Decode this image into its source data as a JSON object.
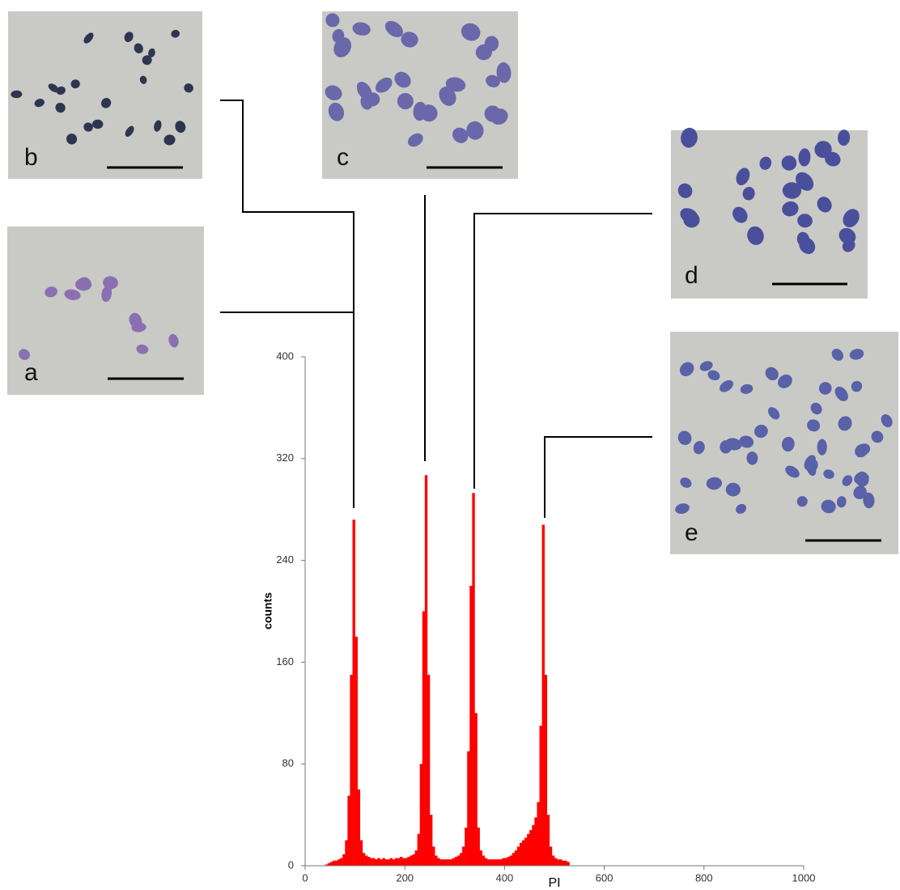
{
  "chart_data": {
    "type": "histogram",
    "xlabel": "PI",
    "ylabel": "counts",
    "color": "#ff0000",
    "bins": [
      40,
      45,
      50,
      55,
      60,
      65,
      70,
      75,
      80,
      85,
      90,
      95,
      100,
      105,
      110,
      115,
      120,
      125,
      130,
      135,
      140,
      145,
      150,
      155,
      160,
      165,
      170,
      175,
      180,
      185,
      190,
      195,
      200,
      205,
      210,
      215,
      220,
      225,
      230,
      235,
      240,
      245,
      250,
      255,
      260,
      265,
      270,
      275,
      280,
      285,
      290,
      295,
      300,
      305,
      310,
      315,
      320,
      325,
      330,
      335,
      340,
      345,
      350,
      355,
      360,
      365,
      370,
      375,
      380,
      385,
      390,
      395,
      400,
      405,
      410,
      415,
      420,
      425,
      430,
      435,
      440,
      445,
      450,
      455,
      460,
      465,
      470,
      475,
      480,
      485,
      490,
      495,
      500,
      505,
      510,
      515,
      520,
      525,
      530
    ],
    "counts": [
      1,
      2,
      3,
      4,
      4,
      5,
      6,
      9,
      20,
      55,
      150,
      272,
      180,
      60,
      20,
      10,
      8,
      7,
      6,
      6,
      5,
      6,
      5,
      6,
      5,
      5,
      6,
      5,
      6,
      6,
      7,
      6,
      6,
      7,
      8,
      9,
      12,
      25,
      80,
      200,
      307,
      150,
      40,
      15,
      8,
      6,
      5,
      5,
      5,
      5,
      5,
      6,
      7,
      8,
      10,
      15,
      30,
      90,
      220,
      293,
      120,
      30,
      12,
      8,
      6,
      5,
      5,
      5,
      5,
      5,
      5,
      6,
      6,
      7,
      8,
      10,
      12,
      15,
      18,
      20,
      22,
      25,
      28,
      32,
      38,
      50,
      110,
      268,
      150,
      40,
      15,
      8,
      6,
      5,
      5,
      4,
      4,
      3
    ],
    "xlim": [
      0,
      1000
    ],
    "xticks": [
      0,
      200,
      400,
      600,
      800,
      1000
    ],
    "ylim": [
      0,
      400
    ],
    "yticks": [
      0,
      80,
      160,
      240,
      320,
      400
    ],
    "panels": [
      "a",
      "b",
      "c",
      "d",
      "e"
    ]
  }
}
